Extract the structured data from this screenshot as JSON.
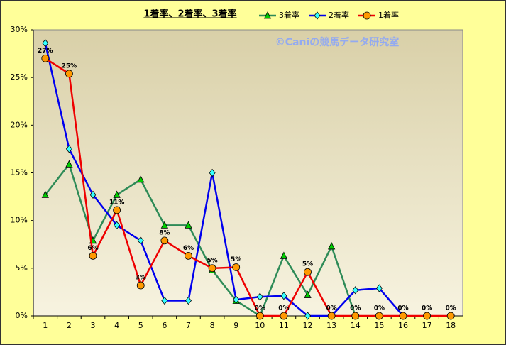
{
  "chart_data": {
    "type": "line",
    "title": "1着率、2着率、3着率",
    "watermark": "©Caniの競馬データ研究室",
    "categories": [
      "1",
      "2",
      "3",
      "4",
      "5",
      "6",
      "7",
      "8",
      "9",
      "10",
      "11",
      "12",
      "13",
      "14",
      "15",
      "16",
      "17",
      "18"
    ],
    "series": [
      {
        "name": "3着率",
        "color": "#2e8b57",
        "marker": "triangle",
        "marker_color": "#00cc00",
        "values": [
          12.7,
          15.9,
          7.9,
          12.7,
          14.3,
          9.5,
          9.5,
          4.8,
          1.6,
          0,
          6.3,
          2.2,
          7.3,
          0,
          null,
          null,
          null,
          null
        ]
      },
      {
        "name": "2着率",
        "color": "#0000ee",
        "marker": "diamond",
        "marker_color": "#33ffff",
        "values": [
          28.6,
          17.5,
          12.7,
          9.5,
          7.9,
          1.6,
          1.6,
          15.0,
          1.7,
          2.0,
          2.1,
          0,
          0,
          2.7,
          2.9,
          0,
          null,
          null
        ]
      },
      {
        "name": "1着率",
        "color": "#ee0000",
        "marker": "circle",
        "marker_color": "#ff9900",
        "values": [
          27.0,
          25.4,
          6.3,
          11.1,
          3.2,
          7.9,
          6.3,
          5.0,
          5.1,
          0,
          0,
          4.6,
          0,
          0,
          0,
          0,
          0,
          0
        ],
        "value_labels": [
          "27%",
          "25%",
          "6%",
          "11%",
          "3%",
          "8%",
          "6%",
          "5%",
          "5%",
          "0%",
          "0%",
          "5%",
          "0%",
          "0%",
          "0%",
          "0%",
          "0%",
          "0%"
        ]
      }
    ],
    "ylim": [
      0,
      30
    ],
    "yticks": [
      {
        "value": 0,
        "label": "0%"
      },
      {
        "value": 5,
        "label": "5%"
      },
      {
        "value": 10,
        "label": "10%"
      },
      {
        "value": 15,
        "label": "15%"
      },
      {
        "value": 20,
        "label": "20%"
      },
      {
        "value": 25,
        "label": "25%"
      },
      {
        "value": 30,
        "label": "30%"
      }
    ],
    "grid": false
  }
}
